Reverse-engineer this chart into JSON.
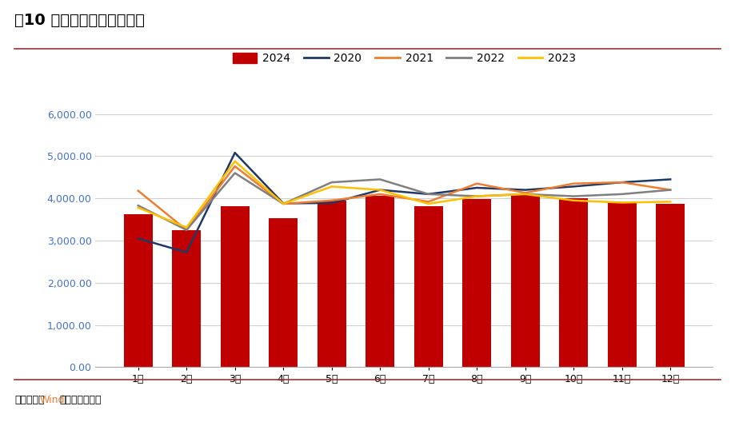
{
  "title": "图10 中国焦煤产量（万吨）",
  "footer_prefix": "资料来源：",
  "footer_wind": "Wind",
  "footer_suffix": "，中证鹏元整理",
  "months": [
    "1月",
    "2月",
    "3月",
    "4月",
    "5月",
    "6月",
    "7月",
    "8月",
    "9月",
    "10月",
    "11月",
    "12月"
  ],
  "bar_2024": [
    3620,
    3250,
    3820,
    3530,
    3950,
    4060,
    3820,
    3980,
    4080,
    4000,
    3900,
    3870
  ],
  "line_2020": [
    3050,
    2720,
    5080,
    3880,
    3890,
    4200,
    4100,
    4250,
    4200,
    4280,
    4380,
    4450
  ],
  "line_2021": [
    4180,
    3250,
    4760,
    3870,
    3950,
    4100,
    3920,
    4350,
    4130,
    4350,
    4380,
    4200
  ],
  "line_2022": [
    3830,
    3250,
    4600,
    3870,
    4380,
    4450,
    4100,
    4050,
    4100,
    4050,
    4100,
    4200
  ],
  "line_2023": [
    3780,
    3310,
    4880,
    3870,
    4280,
    4200,
    3870,
    4050,
    4100,
    3950,
    3900,
    3920
  ],
  "bar_color": "#c00000",
  "color_2020": "#1f3864",
  "color_2021": "#ed7d31",
  "color_2022": "#7f7f7f",
  "color_2023": "#ffc000",
  "ytick_color": "#4472c4",
  "wind_color": "#ed7d31",
  "separator_color": "#943634",
  "ylim": [
    0,
    6000
  ],
  "yticks": [
    0,
    1000,
    2000,
    3000,
    4000,
    5000,
    6000
  ],
  "ytick_labels": [
    "0.00",
    "1,000.00",
    "2,000.00",
    "3,000.00",
    "4,000.00",
    "5,000.00",
    "6,000.00"
  ],
  "background_color": "#ffffff",
  "title_fontsize": 14,
  "legend_fontsize": 10,
  "tick_fontsize": 9,
  "footer_fontsize": 9
}
